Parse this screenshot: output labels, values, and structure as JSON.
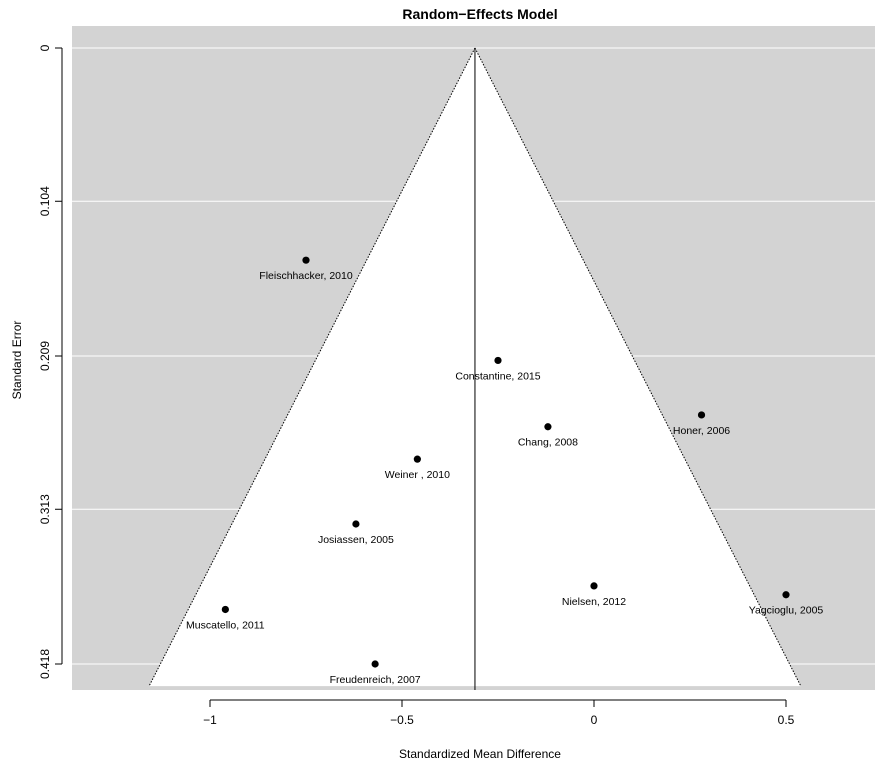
{
  "chart_data": {
    "type": "scatter",
    "title": "Random−Effects Model",
    "xlabel": "Standardized Mean Difference",
    "ylabel": "Standard Error",
    "xlim": [
      -1.42,
      0.76
    ],
    "ylim": [
      0.433,
      0
    ],
    "y_reversed": true,
    "x_ticks": [
      -1,
      -0.5,
      0,
      0.5
    ],
    "x_tick_labels": [
      "−1",
      "−0.5",
      "0",
      "0.5"
    ],
    "y_ticks": [
      0,
      0.104,
      0.209,
      0.313,
      0.418
    ],
    "y_tick_labels": [
      "0",
      "0.104",
      "0.209",
      "0.313",
      "0.418"
    ],
    "pooled_estimate": -0.31,
    "funnel_region_color": "#d3d3d3",
    "background_color": "#ffffff",
    "grid": true,
    "points": [
      {
        "label": "Fleischhacker, 2010",
        "x": -0.75,
        "y": 0.144
      },
      {
        "label": "Constantine, 2015",
        "x": -0.25,
        "y": 0.212
      },
      {
        "label": "Honer, 2006",
        "x": 0.28,
        "y": 0.249
      },
      {
        "label": "Chang, 2008",
        "x": -0.12,
        "y": 0.257
      },
      {
        "label": "Weiner , 2010",
        "x": -0.46,
        "y": 0.279
      },
      {
        "label": "Josiassen, 2005",
        "x": -0.62,
        "y": 0.323
      },
      {
        "label": "Nielsen, 2012",
        "x": 0.0,
        "y": 0.365
      },
      {
        "label": "Yagcioglu, 2005",
        "x": 0.5,
        "y": 0.371
      },
      {
        "label": "Muscatello, 2011",
        "x": -0.96,
        "y": 0.381
      },
      {
        "label": "Freudenreich, 2007",
        "x": -0.57,
        "y": 0.418
      }
    ]
  }
}
